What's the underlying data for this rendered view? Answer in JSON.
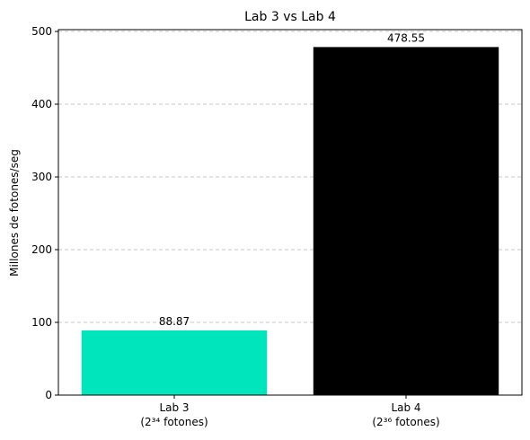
{
  "chart_data": {
    "type": "bar",
    "title": "Lab 3 vs Lab 4",
    "xlabel": "",
    "ylabel": "Millones de fotones/seg",
    "categories": [
      {
        "line1": "Lab 3",
        "line2": "(2³⁴ fotones)"
      },
      {
        "line1": "Lab 4",
        "line2": "(2³⁶ fotones)"
      }
    ],
    "values": [
      88.87,
      478.55
    ],
    "value_labels": [
      "88.87",
      "478.55"
    ],
    "colors": [
      "#00e5bb",
      "#000000"
    ],
    "ylim": [
      0,
      502.5
    ],
    "yticks": [
      0,
      100,
      200,
      300,
      400,
      500
    ],
    "grid": "horizontal dashed"
  }
}
